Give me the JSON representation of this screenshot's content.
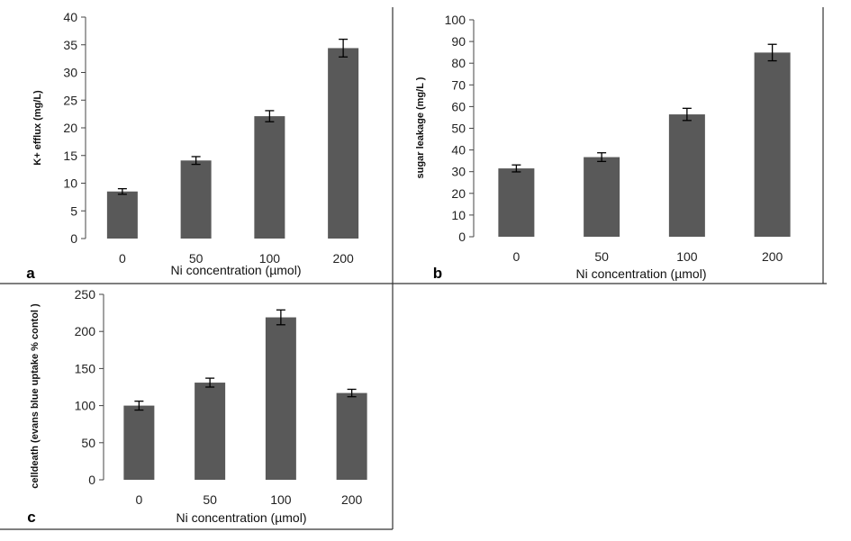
{
  "colors": {
    "bar": "#595959",
    "axis": "#444444",
    "frame": "#333333",
    "errorbar": "#000000"
  },
  "chart_data": [
    {
      "type": "bar",
      "panel_label": "a",
      "categories": [
        "0",
        "50",
        "100",
        "200"
      ],
      "values": [
        8.5,
        14.1,
        22.1,
        34.4
      ],
      "errors": [
        0.5,
        0.7,
        1.0,
        1.6
      ],
      "xlabel": "Ni concentration (µmol)",
      "ylabel": "K+ efflux (mg/L)",
      "ylim": [
        0,
        40
      ],
      "yticks": [
        0,
        5,
        10,
        15,
        20,
        25,
        30,
        35,
        40
      ]
    },
    {
      "type": "bar",
      "panel_label": "b",
      "categories": [
        "0",
        "50",
        "100",
        "200"
      ],
      "values": [
        31.5,
        36.7,
        56.4,
        84.9
      ],
      "errors": [
        1.6,
        2.0,
        2.8,
        3.8
      ],
      "xlabel": "Ni concentration (µmol)",
      "ylabel": "sugar leakage (mg/L  )",
      "ylim": [
        0,
        100
      ],
      "yticks": [
        0,
        10,
        20,
        30,
        40,
        50,
        60,
        70,
        80,
        90,
        100
      ]
    },
    {
      "type": "bar",
      "panel_label": "c",
      "categories": [
        "0",
        "50",
        "100",
        "200"
      ],
      "values": [
        100,
        131,
        219,
        117
      ],
      "errors": [
        6,
        6,
        10,
        5
      ],
      "xlabel": "Ni concentration (µmol)",
      "ylabel": "celldeath (evans blue uptake %  contol  )",
      "ylim": [
        0,
        250
      ],
      "yticks": [
        0,
        50,
        100,
        150,
        200,
        250
      ]
    }
  ]
}
